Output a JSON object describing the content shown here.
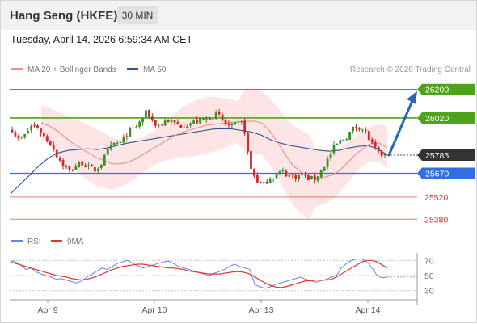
{
  "header": {
    "title": "Hang Seng (HKFE)",
    "timeframe": "30 MIN"
  },
  "datetime": "Tuesday, April 14, 2026 6:59:34 AM CET",
  "legend": {
    "ma20_label": "MA 20 + Bollinger Bands",
    "ma50_label": "MA 50",
    "credit": "Research © 2026 Trading Central",
    "rsi_label": "RSI",
    "ma9_label": "9MA"
  },
  "colors": {
    "ma20": "#f28c8c",
    "ma50": "#2f5597",
    "bollinger": "#fde0e0",
    "green": "#4ea31a",
    "blue": "#2f6fe0",
    "red": "#e8302f",
    "dark": "#333333",
    "candle_up": "#3a8f2a",
    "candle_down": "#d1262b",
    "arrow": "#2766b6"
  },
  "chart_data": [
    {
      "type": "candlestick",
      "x_labels": [
        "Apr 9",
        "Apr 10",
        "Apr 13",
        "Apr 14"
      ],
      "ylim": [
        25320,
        26260
      ],
      "levels": [
        {
          "value": 26200,
          "label": "26200",
          "style": "green-line",
          "kind": "target"
        },
        {
          "value": 26020,
          "label": "26020",
          "style": "green-line",
          "kind": "resistance"
        },
        {
          "value": 25785,
          "label": "25785",
          "style": "dark-dotted",
          "kind": "last-price"
        },
        {
          "value": 25670,
          "label": "25670",
          "style": "blue-line",
          "kind": "pivot"
        },
        {
          "value": 25520,
          "label": "25520",
          "style": "red-line",
          "kind": "support"
        },
        {
          "value": 25380,
          "label": "25380",
          "style": "red-line",
          "kind": "support"
        }
      ],
      "arrow": {
        "from": 25785,
        "to": 26200,
        "direction": "up"
      },
      "close_path": [
        25950,
        25880,
        25910,
        25970,
        25960,
        25900,
        25860,
        25780,
        25720,
        25680,
        25720,
        25740,
        25700,
        25690,
        25740,
        25820,
        25860,
        25860,
        25930,
        25950,
        26000,
        26060,
        25990,
        25970,
        26010,
        25990,
        25970,
        25980,
        25990,
        26000,
        26010,
        26030,
        26040,
        25990,
        25960,
        25980,
        25990,
        25710,
        25630,
        25590,
        25640,
        25660,
        25680,
        25660,
        25650,
        25660,
        25640,
        25630,
        25680,
        25750,
        25830,
        25870,
        25900,
        25950,
        25970,
        25930,
        25850,
        25790,
        25785
      ],
      "ma20": [
        25990,
        25970,
        25940,
        25900,
        25860,
        25830,
        25800,
        25770,
        25750,
        25730,
        25730,
        25740,
        25760,
        25790,
        25820,
        25850,
        25880,
        25910,
        25930,
        25945,
        25960,
        25975,
        25980,
        25985,
        25990,
        25995,
        26000,
        26000,
        25990,
        25940,
        25870,
        25790,
        25720,
        25680,
        25650,
        25640,
        25645,
        25660,
        25690,
        25740,
        25790,
        25830,
        25860,
        25860,
        25830
      ],
      "ma50": [
        25540,
        25600,
        25660,
        25720,
        25770,
        25800,
        25815,
        25820,
        25825,
        25820,
        25830,
        25845,
        25860,
        25870,
        25880,
        25890,
        25900,
        25910,
        25920,
        25930,
        25940,
        25950,
        25952,
        25950,
        25940,
        25930,
        25910,
        25880,
        25860,
        25845,
        25835,
        25825,
        25815,
        25810,
        25815,
        25830,
        25840,
        25845,
        25825,
        25785
      ]
    },
    {
      "type": "line",
      "name": "RSI",
      "ylim": [
        20,
        80
      ],
      "ticks": [
        70,
        50,
        30
      ],
      "rsi": [
        70,
        68,
        64,
        58,
        60,
        55,
        52,
        50,
        48,
        45,
        46,
        44,
        42,
        40,
        43,
        48,
        52,
        56,
        60,
        58,
        62,
        66,
        68,
        70,
        66,
        63,
        60,
        62,
        64,
        66,
        68,
        69,
        66,
        62,
        60,
        58,
        56,
        54,
        52,
        50,
        53,
        55,
        58,
        62,
        65,
        62,
        60,
        58,
        38,
        35,
        33,
        35,
        38,
        40,
        42,
        44,
        46,
        48,
        45,
        43,
        41,
        43,
        45,
        48,
        50,
        60,
        66,
        70,
        72,
        72,
        68,
        60,
        50,
        47,
        48
      ],
      "ma9": [
        68,
        66,
        64,
        62,
        60,
        58,
        56,
        54,
        52,
        50,
        49,
        48,
        46,
        45,
        44,
        45,
        47,
        49,
        52,
        55,
        58,
        60,
        62,
        63,
        64,
        65,
        65,
        64,
        63,
        62,
        61,
        60,
        60,
        59,
        58,
        56,
        55,
        54,
        53,
        52,
        52,
        52,
        53,
        54,
        55,
        55,
        54,
        52,
        48,
        44,
        40,
        37,
        35,
        34,
        35,
        37,
        39,
        41,
        43,
        43,
        44,
        44,
        44,
        45,
        48,
        52,
        56,
        60,
        64,
        68,
        70,
        70,
        68,
        64,
        60
      ]
    }
  ]
}
